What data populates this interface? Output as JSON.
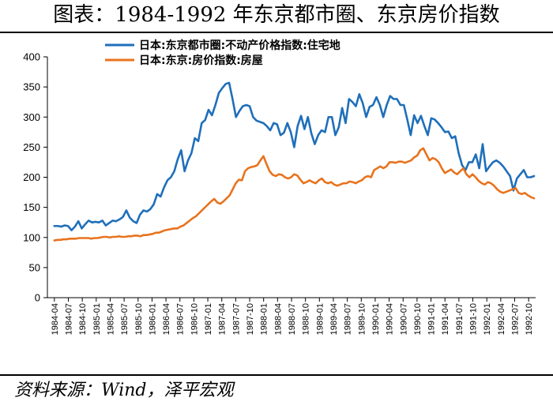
{
  "header": {
    "title": "图表：1984-1992 年东京都市圈、东京房价指数"
  },
  "footer": {
    "source": "资料来源：Wind，泽平宏观"
  },
  "chart_data": {
    "type": "line",
    "title": "图表：1984-1992 年东京都市圈、东京房价指数",
    "xlabel": "",
    "ylabel": "",
    "ylim": [
      0,
      400
    ],
    "yticks": [
      0,
      50,
      100,
      150,
      200,
      250,
      300,
      350,
      400
    ],
    "legend": "top-center",
    "grid": false,
    "x_tick_labels": [
      "1984-04",
      "1984-07",
      "1984-10",
      "1985-01",
      "1985-04",
      "1985-07",
      "1985-10",
      "1986-01",
      "1986-04",
      "1986-07",
      "1986-10",
      "1987-01",
      "1987-04",
      "1987-07",
      "1987-10",
      "1988-01",
      "1988-04",
      "1988-07",
      "1988-10",
      "1989-01",
      "1989-04",
      "1989-07",
      "1989-10",
      "1990-01",
      "1990-04",
      "1990-07",
      "1990-10",
      "1991-01",
      "1991-04",
      "1991-07",
      "1991-10",
      "1992-01",
      "1992-04",
      "1992-07",
      "1992-10"
    ],
    "series": [
      {
        "name": "日本:东京都市圈:不动产价格指数:住宅地",
        "color": "#1f6fba",
        "values": [
          119,
          119,
          118,
          120,
          119,
          112,
          118,
          127,
          115,
          122,
          128,
          125,
          126,
          125,
          128,
          120,
          124,
          128,
          127,
          130,
          134,
          145,
          133,
          127,
          124,
          138,
          145,
          143,
          147,
          155,
          172,
          168,
          183,
          195,
          200,
          210,
          230,
          245,
          210,
          228,
          240,
          265,
          260,
          290,
          295,
          312,
          303,
          320,
          340,
          348,
          355,
          357,
          330,
          300,
          310,
          318,
          320,
          318,
          300,
          294,
          292,
          290,
          285,
          278,
          290,
          288,
          270,
          274,
          290,
          275,
          250,
          285,
          302,
          280,
          300,
          273,
          255,
          270,
          278,
          275,
          300,
          300,
          270,
          283,
          315,
          290,
          330,
          325,
          318,
          338,
          323,
          300,
          317,
          320,
          333,
          320,
          300,
          320,
          335,
          330,
          330,
          320,
          320,
          296,
          270,
          303,
          290,
          302,
          285,
          270,
          298,
          296,
          290,
          283,
          275,
          276,
          265,
          268,
          240,
          220,
          212,
          225,
          225,
          238,
          215,
          255,
          210,
          218,
          225,
          228,
          224,
          218,
          210,
          202,
          178,
          198,
          205,
          212,
          200,
          200,
          202
        ]
      },
      {
        "name": "日本:东京:房价指数:房屋",
        "color": "#e8731e",
        "values": [
          95,
          96,
          96,
          97,
          97,
          98,
          98,
          98,
          99,
          99,
          99,
          99,
          98,
          99,
          99,
          100,
          101,
          101,
          100,
          101,
          101,
          102,
          101,
          101,
          102,
          102,
          103,
          103,
          102,
          104,
          104,
          105,
          106,
          108,
          108,
          110,
          112,
          113,
          114,
          115,
          115,
          118,
          120,
          124,
          128,
          132,
          135,
          140,
          145,
          150,
          155,
          160,
          164,
          158,
          156,
          160,
          165,
          170,
          180,
          190,
          196,
          195,
          210,
          215,
          217,
          218,
          220,
          228,
          235,
          222,
          210,
          204,
          202,
          205,
          204,
          200,
          198,
          200,
          205,
          203,
          196,
          190,
          192,
          195,
          192,
          190,
          195,
          198,
          192,
          190,
          192,
          188,
          186,
          188,
          190,
          190,
          193,
          192,
          190,
          193,
          195,
          200,
          202,
          200,
          212,
          215,
          218,
          215,
          218,
          225,
          225,
          224,
          226,
          226,
          224,
          226,
          228,
          233,
          236,
          245,
          248,
          238,
          228,
          232,
          230,
          225,
          215,
          207,
          210,
          213,
          208,
          205,
          210,
          215,
          205,
          200,
          205,
          200,
          194,
          190,
          188,
          192,
          190,
          186,
          180,
          176,
          174,
          176,
          178,
          180,
          182,
          174,
          172,
          174,
          170,
          167,
          165
        ]
      }
    ]
  }
}
